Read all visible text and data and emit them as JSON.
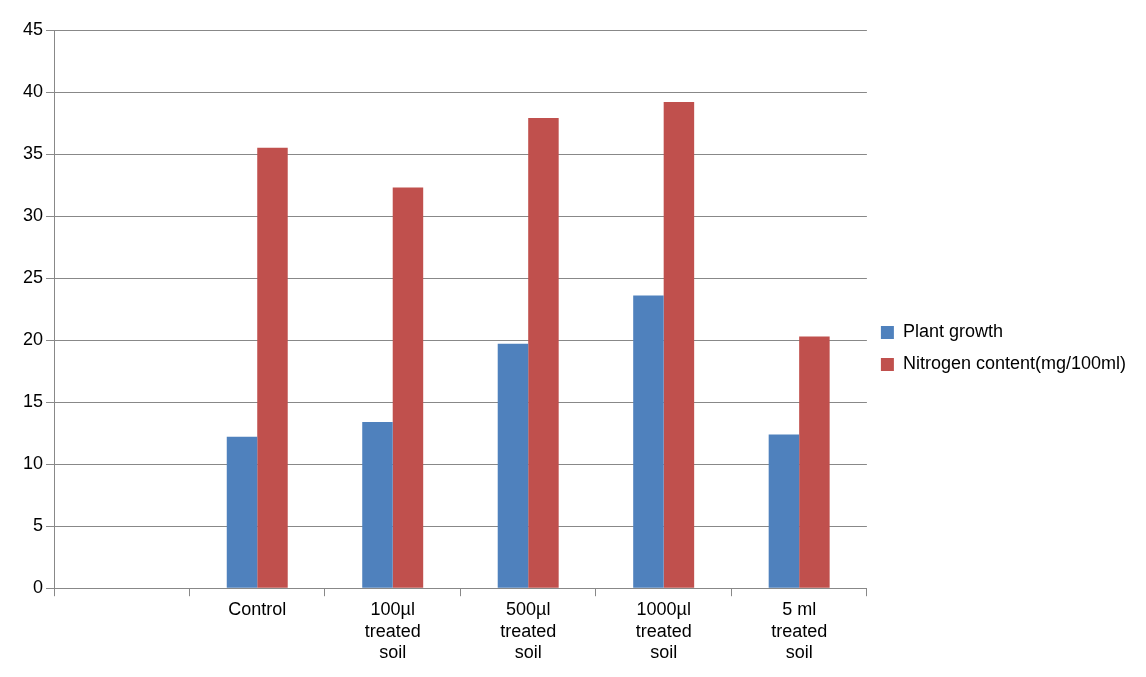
{
  "chart_data": {
    "type": "bar",
    "categories": [
      null,
      "Control",
      "100µl treated soil",
      "500µl treated soil",
      "1000µl treated soil",
      "5 ml treated soil"
    ],
    "series": [
      {
        "name": "Plant growth",
        "color": "#4f81bd",
        "values": [
          null,
          12.2,
          13.4,
          19.7,
          23.6,
          12.4
        ]
      },
      {
        "name": "Nitrogen content(mg/100ml)",
        "color": "#c0504d",
        "values": [
          null,
          35.5,
          32.3,
          37.9,
          39.2,
          20.3
        ]
      }
    ],
    "ylim": [
      0,
      45
    ],
    "yticks": [
      0,
      5,
      10,
      15,
      20,
      25,
      30,
      35,
      40,
      45
    ],
    "grid": "y",
    "legend": "right"
  }
}
